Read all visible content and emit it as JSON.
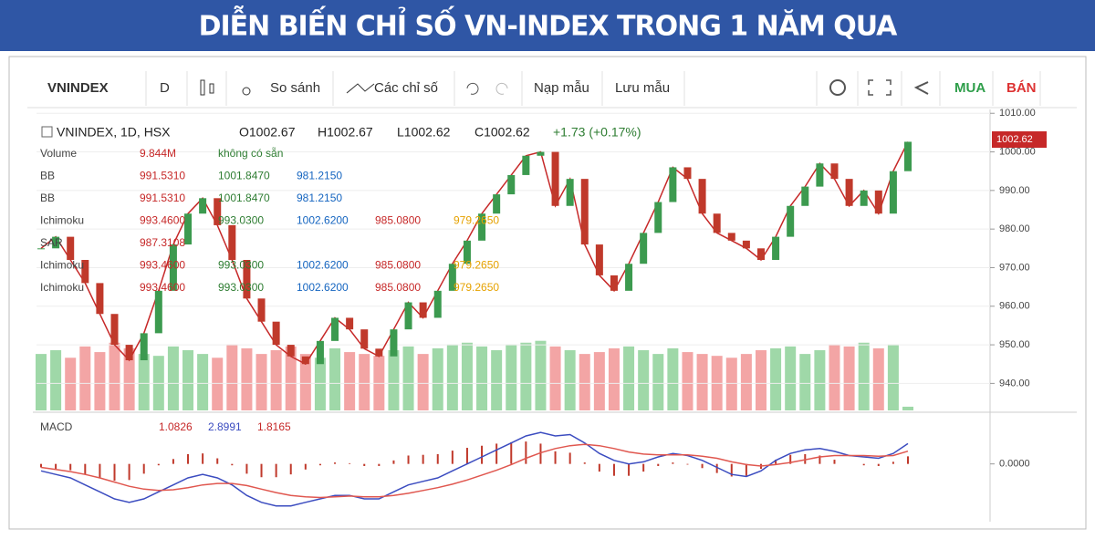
{
  "header": {
    "title": "DIỄN BIẾN CHỈ SỐ VN-INDEX TRONG 1 NĂM QUA"
  },
  "toolbar": {
    "symbol": "VNINDEX",
    "interval": "D",
    "compare": "So sánh",
    "indicators": "Các chỉ số",
    "load": "Nạp mẫu",
    "save": "Lưu mẫu",
    "buy": "MUA",
    "sell": "BÁN"
  },
  "legend": {
    "symbol": "VNINDEX, 1D, HSX",
    "open": "O1002.67",
    "high": "H1002.67",
    "low": "L1002.62",
    "close": "C1002.62",
    "change": "+1.73 (+0.17%)"
  },
  "indicators": [
    {
      "name": "Volume",
      "values": [
        "9.844M",
        "không có sẵn"
      ]
    },
    {
      "name": "BB",
      "values": [
        "991.5310",
        "1001.8470",
        "981.2150"
      ]
    },
    {
      "name": "BB",
      "values": [
        "991.5310",
        "1001.8470",
        "981.2150"
      ]
    },
    {
      "name": "Ichimoku",
      "values": [
        "993.4600",
        "993.0300",
        "1002.6200",
        "985.0800",
        "979.2650"
      ]
    },
    {
      "name": "SAR",
      "values": [
        "987.3108"
      ]
    },
    {
      "name": "Ichimoku",
      "values": [
        "993.4600",
        "993.0300",
        "1002.6200",
        "985.0800",
        "979.2650"
      ]
    },
    {
      "name": "Ichimoku",
      "values": [
        "993.4600",
        "993.0300",
        "1002.6200",
        "985.0800",
        "979.2650"
      ]
    }
  ],
  "macd_legend": {
    "name": "MACD",
    "values": [
      "1.0826",
      "2.8991",
      "1.8165"
    ]
  },
  "last_price": "1002.62",
  "chart_data": [
    {
      "type": "line",
      "color": "#c62828",
      "grid": true,
      "ylim": [
        933,
        1011
      ],
      "yticks": [
        {
          "value": 940,
          "label": "940.00"
        },
        {
          "value": 950,
          "label": "950.00"
        },
        {
          "value": 960,
          "label": "960.00"
        },
        {
          "value": 970,
          "label": "970.00"
        },
        {
          "value": 980,
          "label": "980.00"
        },
        {
          "value": 990,
          "label": "990.00"
        },
        {
          "value": 1000,
          "label": "1000.00"
        },
        {
          "value": 1010,
          "label": "1010.00"
        }
      ],
      "values": [
        975,
        978,
        972,
        966,
        958,
        950,
        946,
        953,
        964,
        976,
        984,
        988,
        981,
        972,
        962,
        956,
        950,
        947,
        945,
        951,
        957,
        954,
        949,
        947,
        954,
        961,
        957,
        964,
        971,
        977,
        984,
        989,
        994,
        999,
        1000,
        986,
        993,
        976,
        968,
        964,
        971,
        979,
        987,
        996,
        993,
        984,
        979,
        977,
        975,
        972,
        978,
        986,
        991,
        997,
        993,
        986,
        990,
        984,
        995,
        1002.62
      ]
    },
    {
      "type": "bar",
      "ylim": [
        0,
        800
      ],
      "values": [
        150,
        160,
        140,
        170,
        155,
        180,
        165,
        150,
        145,
        170,
        160,
        150,
        140,
        175,
        165,
        150,
        160,
        170,
        150,
        140,
        165,
        155,
        150,
        145,
        160,
        170,
        150,
        165,
        175,
        180,
        170,
        160,
        175,
        180,
        185,
        170,
        160,
        150,
        155,
        165,
        170,
        160,
        150,
        165,
        155,
        150,
        145,
        140,
        150,
        160,
        165,
        170,
        150,
        160,
        175,
        170,
        180,
        165,
        175,
        9.844
      ]
    },
    {
      "type": "line",
      "ylim": [
        -8,
        7
      ],
      "yticks": [
        {
          "value": 0,
          "label": "0.0000"
        }
      ],
      "series": [
        {
          "color": "#3b4cc0",
          "values": [
            -1,
            -1.5,
            -2,
            -3,
            -4,
            -5,
            -5.5,
            -5,
            -4,
            -3,
            -2,
            -1.5,
            -2,
            -3,
            -4.5,
            -5.5,
            -6,
            -6,
            -5.5,
            -5,
            -4.5,
            -4.5,
            -5,
            -5,
            -4,
            -3,
            -2.5,
            -2,
            -1,
            0,
            1,
            2,
            3,
            4,
            4.5,
            4,
            4.2,
            3,
            1.5,
            0.5,
            0,
            0.3,
            1,
            1.5,
            1.2,
            0.5,
            -0.5,
            -1.5,
            -1.8,
            -1,
            0.5,
            1.5,
            2,
            2.2,
            1.8,
            1.2,
            1,
            0.8,
            1.5,
            2.8991
          ]
        },
        {
          "color": "#e0574f",
          "values": [
            -0.5,
            -0.8,
            -1.1,
            -1.5,
            -2,
            -2.6,
            -3.2,
            -3.6,
            -3.8,
            -3.7,
            -3.4,
            -3,
            -2.8,
            -2.8,
            -3.1,
            -3.6,
            -4.1,
            -4.5,
            -4.7,
            -4.8,
            -4.7,
            -4.6,
            -4.7,
            -4.7,
            -4.5,
            -4.2,
            -3.8,
            -3.4,
            -2.9,
            -2.3,
            -1.6,
            -0.9,
            -0.1,
            0.8,
            1.6,
            2.2,
            2.6,
            2.8,
            2.6,
            2.2,
            1.7,
            1.4,
            1.3,
            1.3,
            1.3,
            1.1,
            0.8,
            0.3,
            -0.1,
            -0.3,
            -0.1,
            0.2,
            0.6,
            1,
            1.2,
            1.2,
            1.2,
            1.1,
            1.2,
            1.8165
          ]
        }
      ],
      "histogram": {
        "color": "#c0392b",
        "values": [
          -0.5,
          -0.7,
          -0.9,
          -1.5,
          -2,
          -2.4,
          -2.3,
          -1.4,
          -0.2,
          0.7,
          1.4,
          1.5,
          0.8,
          -0.2,
          -1.4,
          -1.9,
          -1.9,
          -1.5,
          -0.8,
          -0.2,
          0.2,
          0.1,
          -0.3,
          -0.3,
          0.5,
          1.2,
          1.3,
          1.4,
          1.9,
          2.3,
          2.6,
          2.9,
          3.1,
          3.2,
          2.9,
          1.8,
          1.6,
          0.2,
          -1.1,
          -1.7,
          -1.7,
          -1.1,
          -0.3,
          0.2,
          -0.1,
          -0.6,
          -1.3,
          -1.8,
          -1.7,
          -0.7,
          0.6,
          1.3,
          1.4,
          1.2,
          0.6,
          0,
          -0.2,
          -0.3,
          0.3,
          1.0826
        ]
      }
    }
  ]
}
